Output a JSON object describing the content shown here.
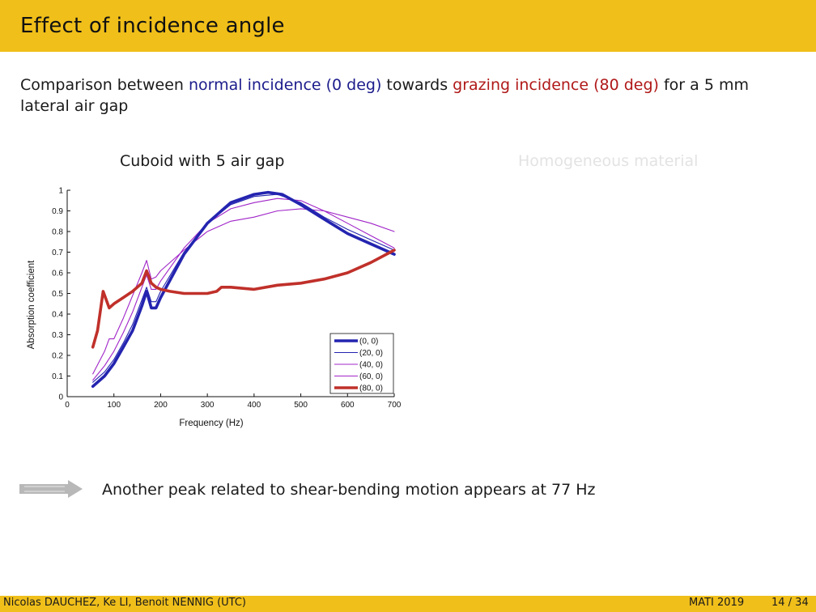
{
  "slide": {
    "title": "Effect of incidence angle",
    "intro": {
      "part1": "Comparison between ",
      "normal": "normal incidence (0 deg)",
      "part2": " towards ",
      "grazing": "grazing incidence (80 deg)",
      "part3": " for a 5 mm lateral air gap"
    },
    "subtitle_left": "Cuboid with 5 air gap",
    "subtitle_right": "Homogeneous material",
    "note": "Another peak related to shear-bending motion appears at 77 Hz",
    "footer": {
      "authors": "Nicolas DAUCHEZ, Ke LI, Benoit NENNIG  (UTC)",
      "conference": "MATI 2019",
      "page": "14 / 34"
    }
  },
  "colors": {
    "banner": "#f0bf1a",
    "normal": "#1c1c8c",
    "grazing": "#b01818",
    "series_blue": "#2424b0",
    "series_purple": "#a024c8",
    "series_red": "#c0302a"
  },
  "chart_data": {
    "type": "line",
    "xlabel": "Frequency (Hz)",
    "ylabel": "Absorption coefficient",
    "xlim": [
      0,
      700
    ],
    "ylim": [
      0,
      1
    ],
    "xticks": [
      0,
      100,
      200,
      300,
      400,
      500,
      600,
      700
    ],
    "yticks": [
      0,
      0.1,
      0.2,
      0.3,
      0.4,
      0.5,
      0.6,
      0.7,
      0.8,
      0.9,
      1
    ],
    "legend_position": "bottom-right",
    "series": [
      {
        "name": "(0, 0)",
        "color": "#2424b0",
        "width": "thick",
        "x": [
          55,
          80,
          100,
          120,
          140,
          160,
          170,
          180,
          190,
          200,
          250,
          300,
          350,
          400,
          430,
          460,
          500,
          550,
          600,
          650,
          700
        ],
        "y": [
          0.05,
          0.1,
          0.16,
          0.24,
          0.32,
          0.44,
          0.51,
          0.43,
          0.43,
          0.48,
          0.69,
          0.84,
          0.94,
          0.98,
          0.99,
          0.98,
          0.93,
          0.86,
          0.79,
          0.74,
          0.69
        ]
      },
      {
        "name": "(20, 0)",
        "color": "#2424b0",
        "width": "thin",
        "x": [
          55,
          80,
          100,
          120,
          140,
          160,
          170,
          180,
          190,
          200,
          250,
          300,
          350,
          400,
          450,
          500,
          550,
          600,
          650,
          700
        ],
        "y": [
          0.07,
          0.12,
          0.18,
          0.26,
          0.35,
          0.47,
          0.53,
          0.46,
          0.46,
          0.51,
          0.7,
          0.84,
          0.93,
          0.97,
          0.98,
          0.94,
          0.87,
          0.81,
          0.76,
          0.71
        ]
      },
      {
        "name": "(40, 0)",
        "color": "#a024c8",
        "width": "thin",
        "x": [
          55,
          80,
          100,
          120,
          140,
          160,
          170,
          180,
          190,
          200,
          250,
          300,
          350,
          400,
          450,
          500,
          550,
          600,
          650,
          700
        ],
        "y": [
          0.08,
          0.15,
          0.22,
          0.31,
          0.41,
          0.53,
          0.59,
          0.52,
          0.52,
          0.56,
          0.72,
          0.84,
          0.91,
          0.94,
          0.96,
          0.95,
          0.9,
          0.84,
          0.78,
          0.72
        ]
      },
      {
        "name": "(60, 0)",
        "color": "#a024c8",
        "width": "thin",
        "x": [
          55,
          80,
          90,
          100,
          120,
          140,
          160,
          170,
          180,
          190,
          200,
          250,
          300,
          350,
          400,
          450,
          500,
          550,
          600,
          650,
          700
        ],
        "y": [
          0.11,
          0.22,
          0.28,
          0.28,
          0.38,
          0.49,
          0.6,
          0.66,
          0.57,
          0.58,
          0.61,
          0.71,
          0.8,
          0.85,
          0.87,
          0.9,
          0.91,
          0.9,
          0.87,
          0.84,
          0.8
        ]
      },
      {
        "name": "(80, 0)",
        "color": "#c0302a",
        "width": "thick",
        "x": [
          55,
          65,
          77,
          90,
          100,
          120,
          140,
          160,
          170,
          180,
          190,
          200,
          220,
          250,
          300,
          320,
          330,
          350,
          400,
          450,
          500,
          550,
          600,
          650,
          700
        ],
        "y": [
          0.24,
          0.32,
          0.51,
          0.43,
          0.45,
          0.48,
          0.51,
          0.55,
          0.61,
          0.55,
          0.53,
          0.52,
          0.51,
          0.5,
          0.5,
          0.51,
          0.53,
          0.53,
          0.52,
          0.54,
          0.55,
          0.57,
          0.6,
          0.65,
          0.71
        ]
      }
    ]
  }
}
